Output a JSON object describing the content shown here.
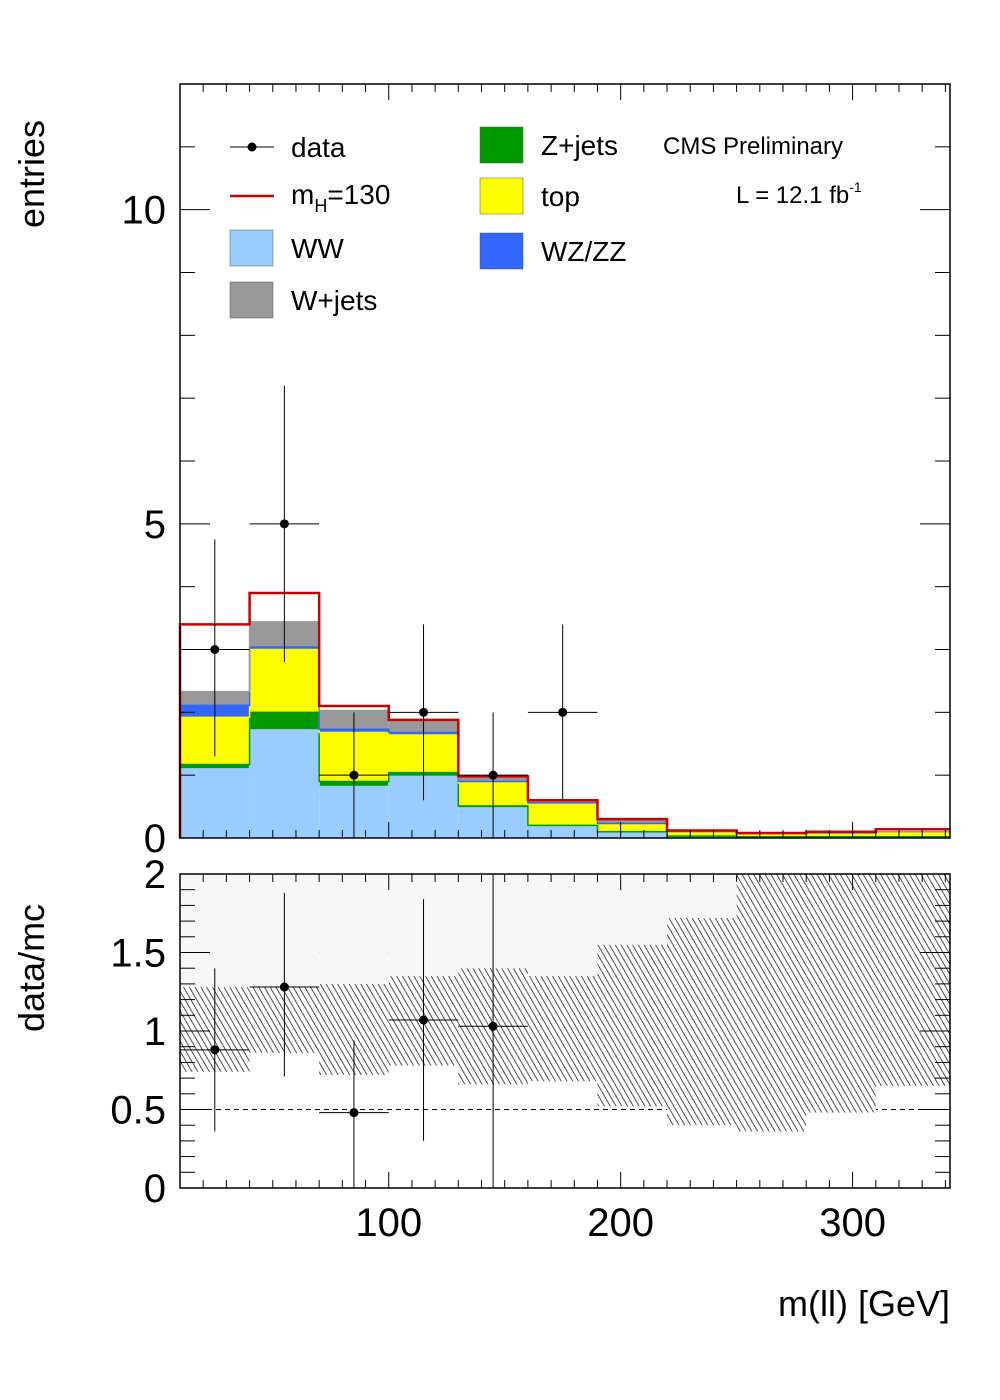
{
  "chart_data": [
    {
      "type": "bar",
      "stacked": true,
      "ylabel": "entries",
      "xlim": [
        10,
        342
      ],
      "ylim": [
        0,
        12
      ],
      "y_ticks": [
        0,
        5,
        10
      ],
      "y_tick_labels": [
        "0",
        "5",
        "10"
      ],
      "bin_edges": [
        10,
        40,
        70,
        100,
        130,
        160,
        190,
        220,
        250,
        280,
        310,
        342
      ],
      "series": [
        {
          "name": "WW",
          "color": "#99ccff",
          "values": [
            1.1,
            1.72,
            0.82,
            0.98,
            0.48,
            0.18,
            0.08,
            0.02,
            0.02,
            0.02,
            0.02
          ]
        },
        {
          "name": "Z+jets",
          "color": "#009900",
          "values": [
            0.07,
            0.28,
            0.08,
            0.06,
            0.03,
            0.02,
            0.02,
            0.01,
            0.0,
            0.0,
            0.0
          ]
        },
        {
          "name": "top",
          "color": "#ffff00",
          "values": [
            0.75,
            1.0,
            0.78,
            0.6,
            0.37,
            0.35,
            0.12,
            0.06,
            0.04,
            0.05,
            0.07
          ]
        },
        {
          "name": "WZ/ZZ",
          "color": "#3366ff",
          "values": [
            0.19,
            0.04,
            0.05,
            0.04,
            0.02,
            0.01,
            0.01,
            0.01,
            0.01,
            0.01,
            0.01
          ]
        },
        {
          "name": "W+jets",
          "color": "#999999",
          "values": [
            0.22,
            0.4,
            0.3,
            0.2,
            0.05,
            0.03,
            0.05,
            0.0,
            0.0,
            0.0,
            0.0
          ]
        }
      ],
      "signal": {
        "name": "m_H=130",
        "label_main": "m",
        "label_sub": "H",
        "label_rest": "=130",
        "color": "#cc0000",
        "values": [
          3.4,
          3.9,
          2.1,
          1.88,
          0.98,
          0.6,
          0.3,
          0.12,
          0.08,
          0.1,
          0.14
        ]
      },
      "data": {
        "name": "data",
        "x": [
          25,
          55,
          85,
          115,
          145,
          175
        ],
        "y": [
          3,
          5,
          1,
          2,
          1,
          2
        ],
        "err_low": [
          1.7,
          2.2,
          1.0,
          1.4,
          1.0,
          1.4
        ],
        "err_high": [
          1.75,
          2.2,
          1.0,
          1.4,
          1.0,
          1.4
        ]
      },
      "legend": {
        "col1": [
          {
            "key": "data",
            "label": "data"
          },
          {
            "key": "signal",
            "label": "m_H=130"
          },
          {
            "key": "WW",
            "label": "WW"
          },
          {
            "key": "W+jets",
            "label": "W+jets"
          }
        ],
        "col2": [
          {
            "key": "Z+jets",
            "label": "Z+jets"
          },
          {
            "key": "top",
            "label": "top"
          },
          {
            "key": "WZ/ZZ",
            "label": "WZ/ZZ"
          }
        ],
        "placement": "top"
      },
      "annotations": {
        "experiment": "CMS Preliminary",
        "lumi_main": "L = 12.1 fb",
        "lumi_sup": "-1"
      }
    },
    {
      "type": "scatter",
      "ylabel": "data/mc",
      "xlabel": "m(ll) [GeV]",
      "xlim": [
        10,
        342
      ],
      "ylim": [
        0,
        2
      ],
      "y_ticks": [
        0,
        0.5,
        1,
        1.5,
        2
      ],
      "y_tick_labels": [
        "0",
        "0.5",
        "1",
        "1.5",
        "2"
      ],
      "x_ticks": [
        100,
        200,
        300
      ],
      "x_tick_labels": [
        "100",
        "200",
        "300"
      ],
      "grid": "dashed at 0.5, 1, 1.5",
      "ratio_points": {
        "x": [
          25,
          55,
          85,
          115,
          145
        ],
        "y": [
          0.88,
          1.28,
          0.48,
          1.07,
          1.03
        ],
        "err_low": [
          0.52,
          0.57,
          0.48,
          0.77,
          1.03
        ],
        "err_high": [
          0.52,
          0.6,
          0.46,
          0.77,
          0.97
        ]
      },
      "uncertainty_band": {
        "low": [
          0.74,
          0.86,
          0.72,
          0.78,
          0.66,
          0.68,
          0.52,
          0.4,
          0.36,
          0.48,
          0.65
        ],
        "high": [
          1.28,
          1.28,
          1.3,
          1.35,
          1.4,
          1.35,
          1.55,
          1.72,
          2.0,
          2.0,
          2.0
        ]
      }
    }
  ]
}
